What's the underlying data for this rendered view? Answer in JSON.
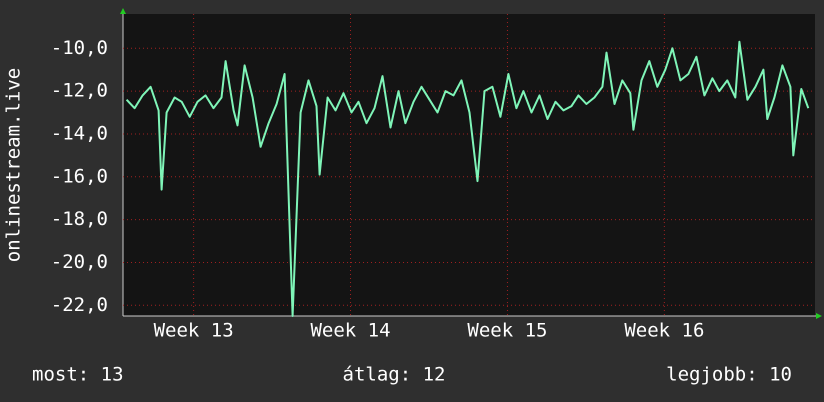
{
  "chart_data": {
    "type": "line",
    "y_label": "onlinestream.live",
    "footer": [
      "most: 13",
      "átlag: 12",
      "legjobb: 10"
    ],
    "xlim": [
      12.55,
      16.96
    ],
    "xticks": [
      {
        "value": 13,
        "label": "Week 13"
      },
      {
        "value": 14,
        "label": "Week 14"
      },
      {
        "value": 15,
        "label": "Week 15"
      },
      {
        "value": 16,
        "label": "Week 16"
      }
    ],
    "ylim": [
      -22.5,
      -8.4
    ],
    "yticks": [
      {
        "value": -10,
        "label": "-10,0"
      },
      {
        "value": -12,
        "label": "-12,0"
      },
      {
        "value": -14,
        "label": "-14,0"
      },
      {
        "value": -16,
        "label": "-16,0"
      },
      {
        "value": -18,
        "label": "-18,0"
      },
      {
        "value": -20,
        "label": "-20,0"
      },
      {
        "value": -22,
        "label": "-22,0"
      }
    ],
    "grid": true,
    "series": [
      {
        "color": "#7ff5b8",
        "x": [
          12.573,
          12.624,
          12.675,
          12.726,
          12.777,
          12.796,
          12.828,
          12.879,
          12.924,
          12.975,
          13.025,
          13.076,
          13.127,
          13.178,
          13.204,
          13.255,
          13.28,
          13.325,
          13.376,
          13.427,
          13.478,
          13.529,
          13.58,
          13.631,
          13.682,
          13.732,
          13.783,
          13.803,
          13.854,
          13.904,
          13.955,
          14.006,
          14.051,
          14.102,
          14.153,
          14.204,
          14.255,
          14.306,
          14.35,
          14.401,
          14.452,
          14.503,
          14.554,
          14.605,
          14.656,
          14.707,
          14.758,
          14.809,
          14.854,
          14.904,
          14.955,
          15.006,
          15.057,
          15.102,
          15.153,
          15.204,
          15.255,
          15.306,
          15.357,
          15.408,
          15.452,
          15.503,
          15.554,
          15.605,
          15.631,
          15.682,
          15.732,
          15.783,
          15.803,
          15.854,
          15.904,
          15.955,
          16.006,
          16.051,
          16.102,
          16.153,
          16.204,
          16.255,
          16.306,
          16.35,
          16.401,
          16.452,
          16.478,
          16.529,
          16.58,
          16.631,
          16.656,
          16.701,
          16.752,
          16.803,
          16.822,
          16.873,
          16.917
        ],
        "values": [
          -12.4,
          -12.8,
          -12.2,
          -11.8,
          -12.9,
          -16.6,
          -13,
          -12.3,
          -12.5,
          -13.2,
          -12.5,
          -12.2,
          -12.8,
          -12.3,
          -10.6,
          -12.9,
          -13.6,
          -10.8,
          -12.3,
          -14.6,
          -13.5,
          -12.6,
          -11.2,
          -22.5,
          -13,
          -11.5,
          -12.7,
          -15.9,
          -12.3,
          -12.9,
          -12.1,
          -13,
          -12.5,
          -13.5,
          -12.8,
          -11.3,
          -13.7,
          -12,
          -13.5,
          -12.5,
          -11.8,
          -12.4,
          -13,
          -12,
          -12.2,
          -11.5,
          -13,
          -16.2,
          -12,
          -11.8,
          -13.2,
          -11.2,
          -12.8,
          -12,
          -13,
          -12.2,
          -13.3,
          -12.5,
          -12.9,
          -12.7,
          -12.2,
          -12.6,
          -12.3,
          -11.8,
          -10.2,
          -12.6,
          -11.5,
          -12.1,
          -13.8,
          -11.5,
          -10.6,
          -11.8,
          -11,
          -10,
          -11.5,
          -11.2,
          -10.4,
          -12.2,
          -11.4,
          -12,
          -11.5,
          -12.3,
          -9.7,
          -12.4,
          -11.8,
          -11,
          -13.3,
          -12.3,
          -10.8,
          -11.8,
          -15,
          -11.9,
          -12.8
        ]
      }
    ]
  }
}
